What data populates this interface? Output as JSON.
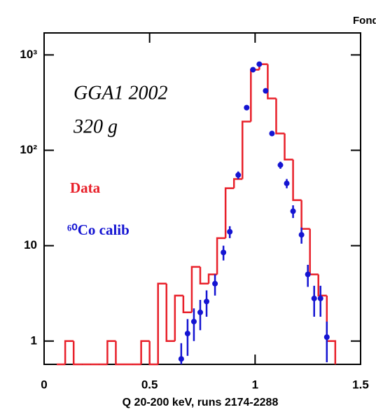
{
  "chart_data": {
    "type": "histogram",
    "title": "Fond",
    "xlabel": "Q 20-200 keV, runs 2174-2288",
    "annotations": [
      "GGA1 2002",
      "320 g"
    ],
    "xlim": [
      0,
      1.5
    ],
    "xticks": [
      0,
      0.5,
      1,
      1.5
    ],
    "ylim": [
      0.57,
      1700
    ],
    "log_y": true,
    "yticks": [
      1,
      10,
      {
        "value": 100,
        "label": "10²"
      },
      {
        "value": 1000,
        "label": "10³"
      }
    ],
    "bins": [
      0.06,
      0.1,
      0.14,
      0.18,
      0.22,
      0.26,
      0.3,
      0.34,
      0.38,
      0.42,
      0.46,
      0.5,
      0.54,
      0.58,
      0.62,
      0.66,
      0.7,
      0.74,
      0.78,
      0.82,
      0.86,
      0.9,
      0.94,
      0.98,
      1.02,
      1.06,
      1.1,
      1.14,
      1.18,
      1.22,
      1.26,
      1.3,
      1.34,
      1.38
    ],
    "series": [
      {
        "name": "Data",
        "color": "#e8202a",
        "values": [
          0,
          1,
          0,
          0,
          0,
          0,
          1,
          0,
          0,
          0,
          1,
          0,
          4,
          1,
          3,
          2,
          6,
          4,
          5,
          12,
          40,
          50,
          200,
          700,
          800,
          350,
          150,
          80,
          30,
          15,
          5,
          3,
          1
        ]
      },
      {
        "name": "⁶⁰Co calib",
        "color": "#1414d2",
        "type": "errorbar",
        "x": [
          0.65,
          0.68,
          0.71,
          0.74,
          0.77,
          0.81,
          0.85,
          0.88,
          0.92,
          0.96,
          0.99,
          1.02,
          1.05,
          1.08,
          1.12,
          1.15,
          1.18,
          1.22,
          1.25,
          1.28,
          1.31,
          1.34
        ],
        "values": [
          0.65,
          1.2,
          1.6,
          2,
          2.6,
          4,
          8.5,
          14,
          55,
          280,
          700,
          800,
          420,
          150,
          70,
          45,
          23,
          13,
          5,
          2.8,
          2.8,
          1.1
        ],
        "errors": [
          0.3,
          0.5,
          0.6,
          0.7,
          0.8,
          1,
          1.5,
          2,
          5,
          12,
          20,
          22,
          16,
          9,
          6,
          5,
          3.5,
          2.5,
          1.3,
          1,
          1,
          0.5
        ]
      }
    ]
  }
}
